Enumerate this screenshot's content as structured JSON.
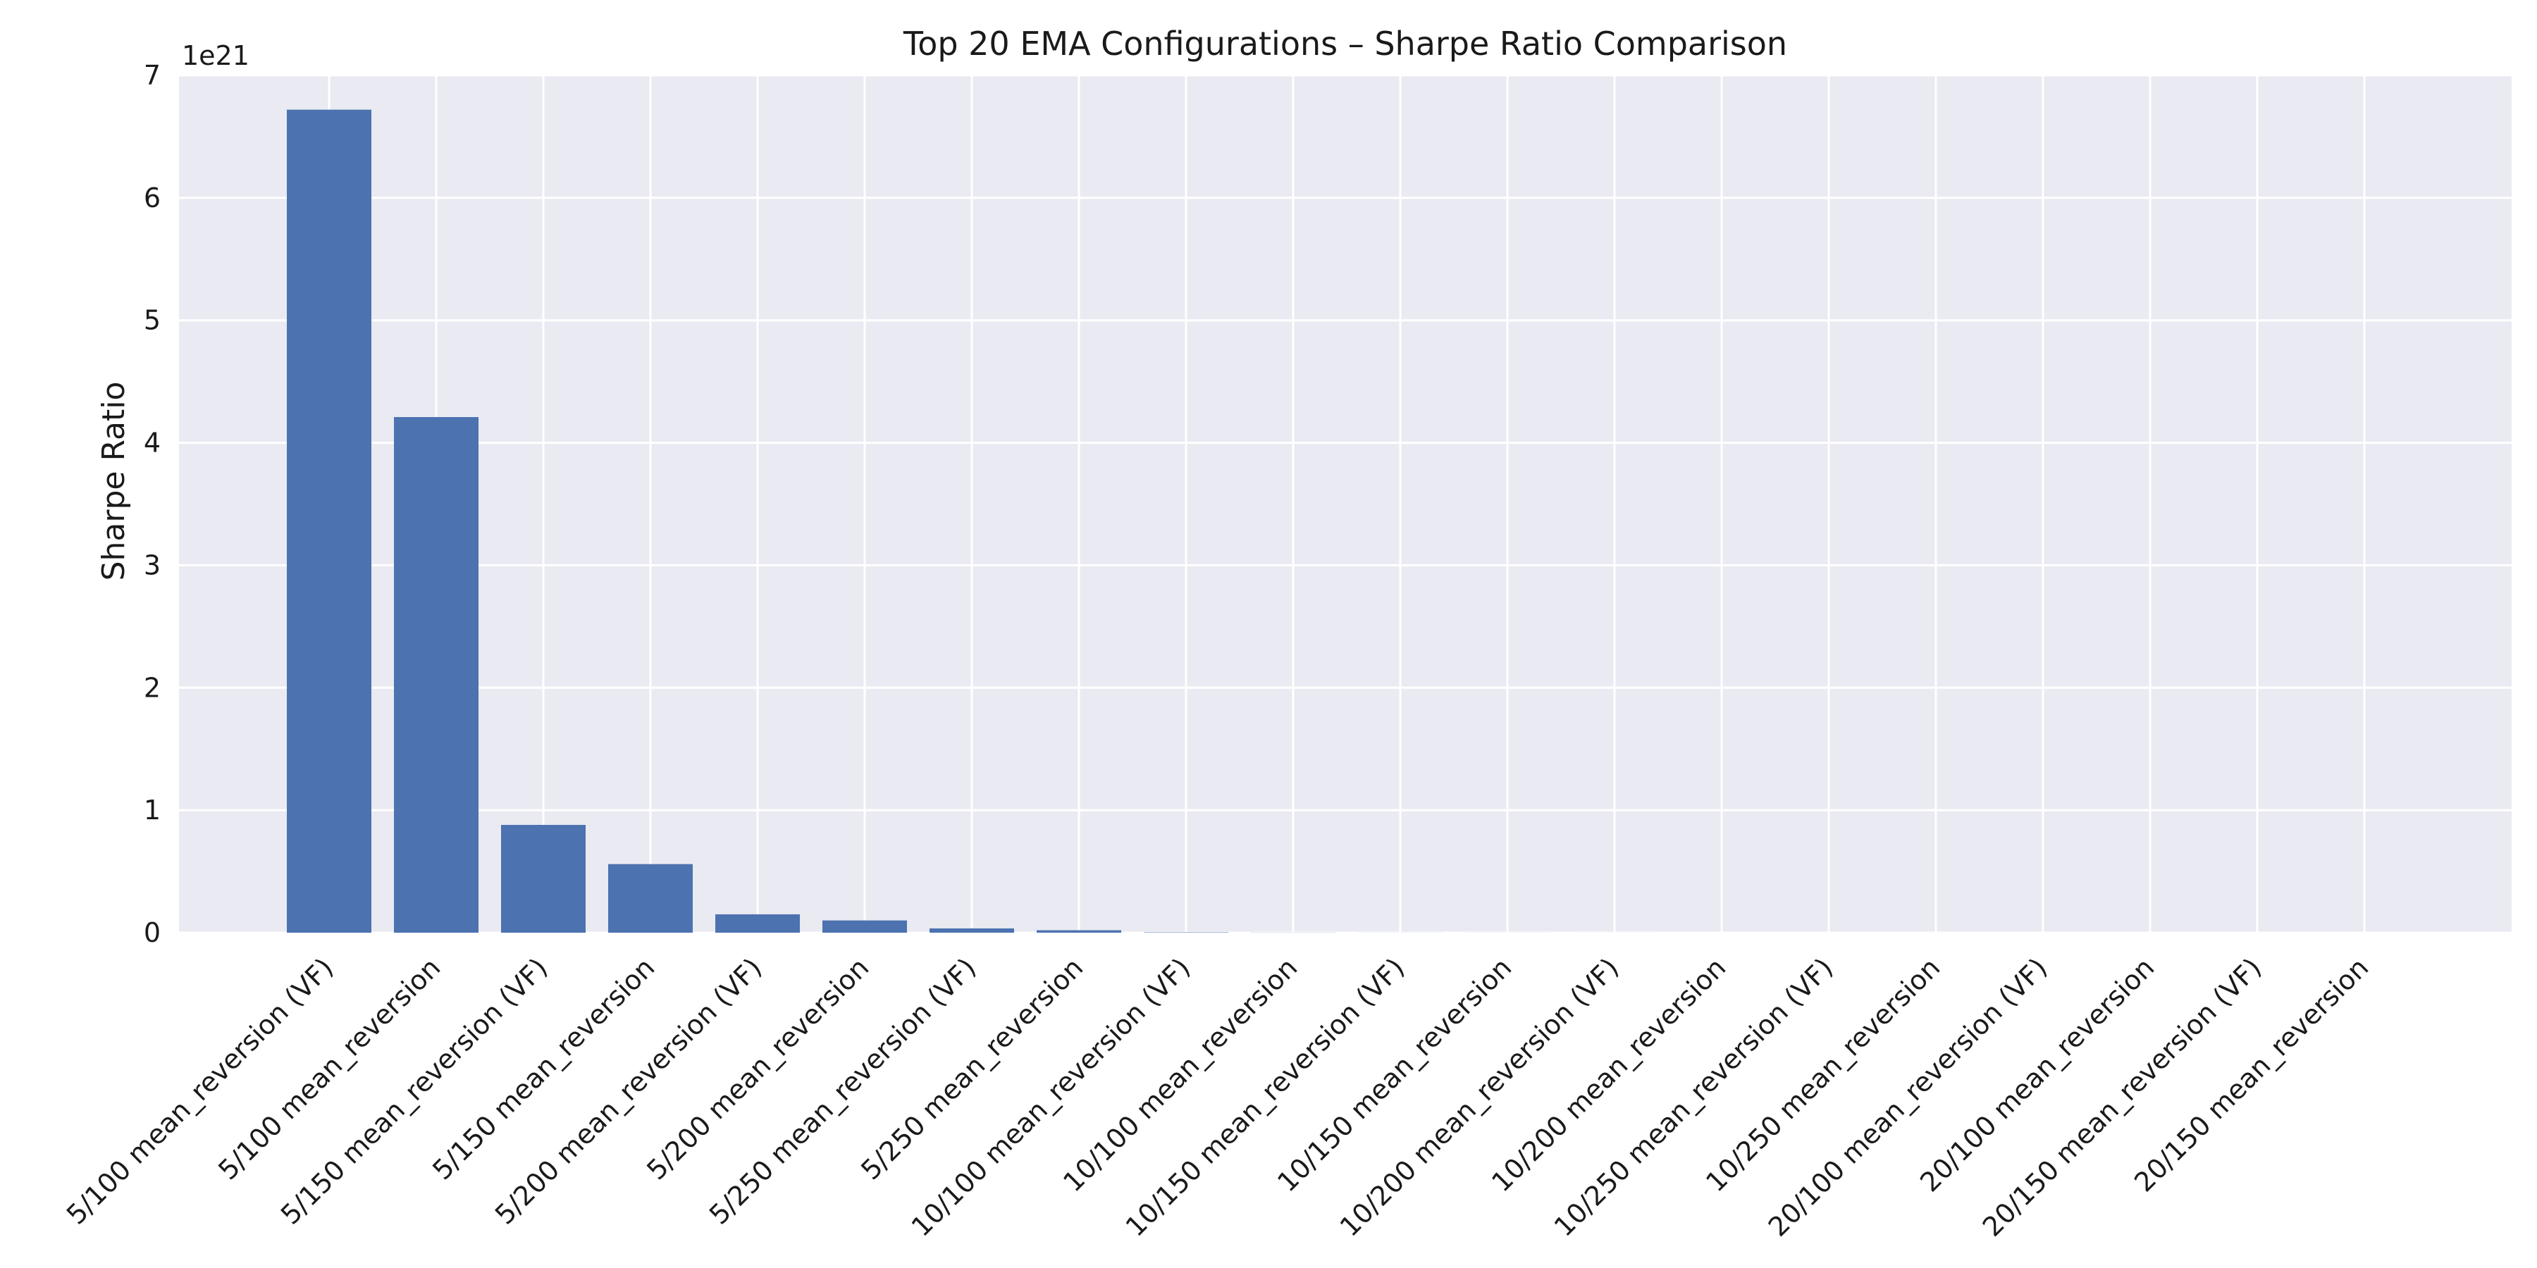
{
  "chart_data": {
    "type": "bar",
    "title": "Top 20 EMA Configurations – Sharpe Ratio Comparison",
    "xlabel": "",
    "ylabel": "Sharpe Ratio",
    "y_offset_text": "1e21",
    "y_scale_multiplier": 1e+21,
    "ylim": [
      0,
      7
    ],
    "yticks": [
      0,
      1,
      2,
      3,
      4,
      5,
      6,
      7
    ],
    "grid": true,
    "legend": "none",
    "colors": {
      "bar": "#4c72b0",
      "background": "#eaeaf2",
      "grid": "#ffffff",
      "text": "#1a1a1a"
    },
    "categories": [
      "5/100 mean_reversion (VF)",
      "5/100 mean_reversion",
      "5/150 mean_reversion (VF)",
      "5/150 mean_reversion",
      "5/200 mean_reversion (VF)",
      "5/200 mean_reversion",
      "5/250 mean_reversion (VF)",
      "5/250 mean_reversion",
      "10/100 mean_reversion (VF)",
      "10/100 mean_reversion",
      "10/150 mean_reversion (VF)",
      "10/150 mean_reversion",
      "10/200 mean_reversion (VF)",
      "10/200 mean_reversion",
      "10/250 mean_reversion (VF)",
      "10/250 mean_reversion",
      "20/100 mean_reversion (VF)",
      "20/100 mean_reversion",
      "20/150 mean_reversion (VF)",
      "20/150 mean_reversion"
    ],
    "values": [
      6.72,
      4.21,
      0.88,
      0.56,
      0.15,
      0.1,
      0.035,
      0.02,
      0.003,
      0.001,
      0.0005,
      0.0003,
      0.0002,
      0.0001,
      0.0001,
      0.0001,
      0.0001,
      0.0001,
      0.0001,
      0.0001
    ]
  }
}
